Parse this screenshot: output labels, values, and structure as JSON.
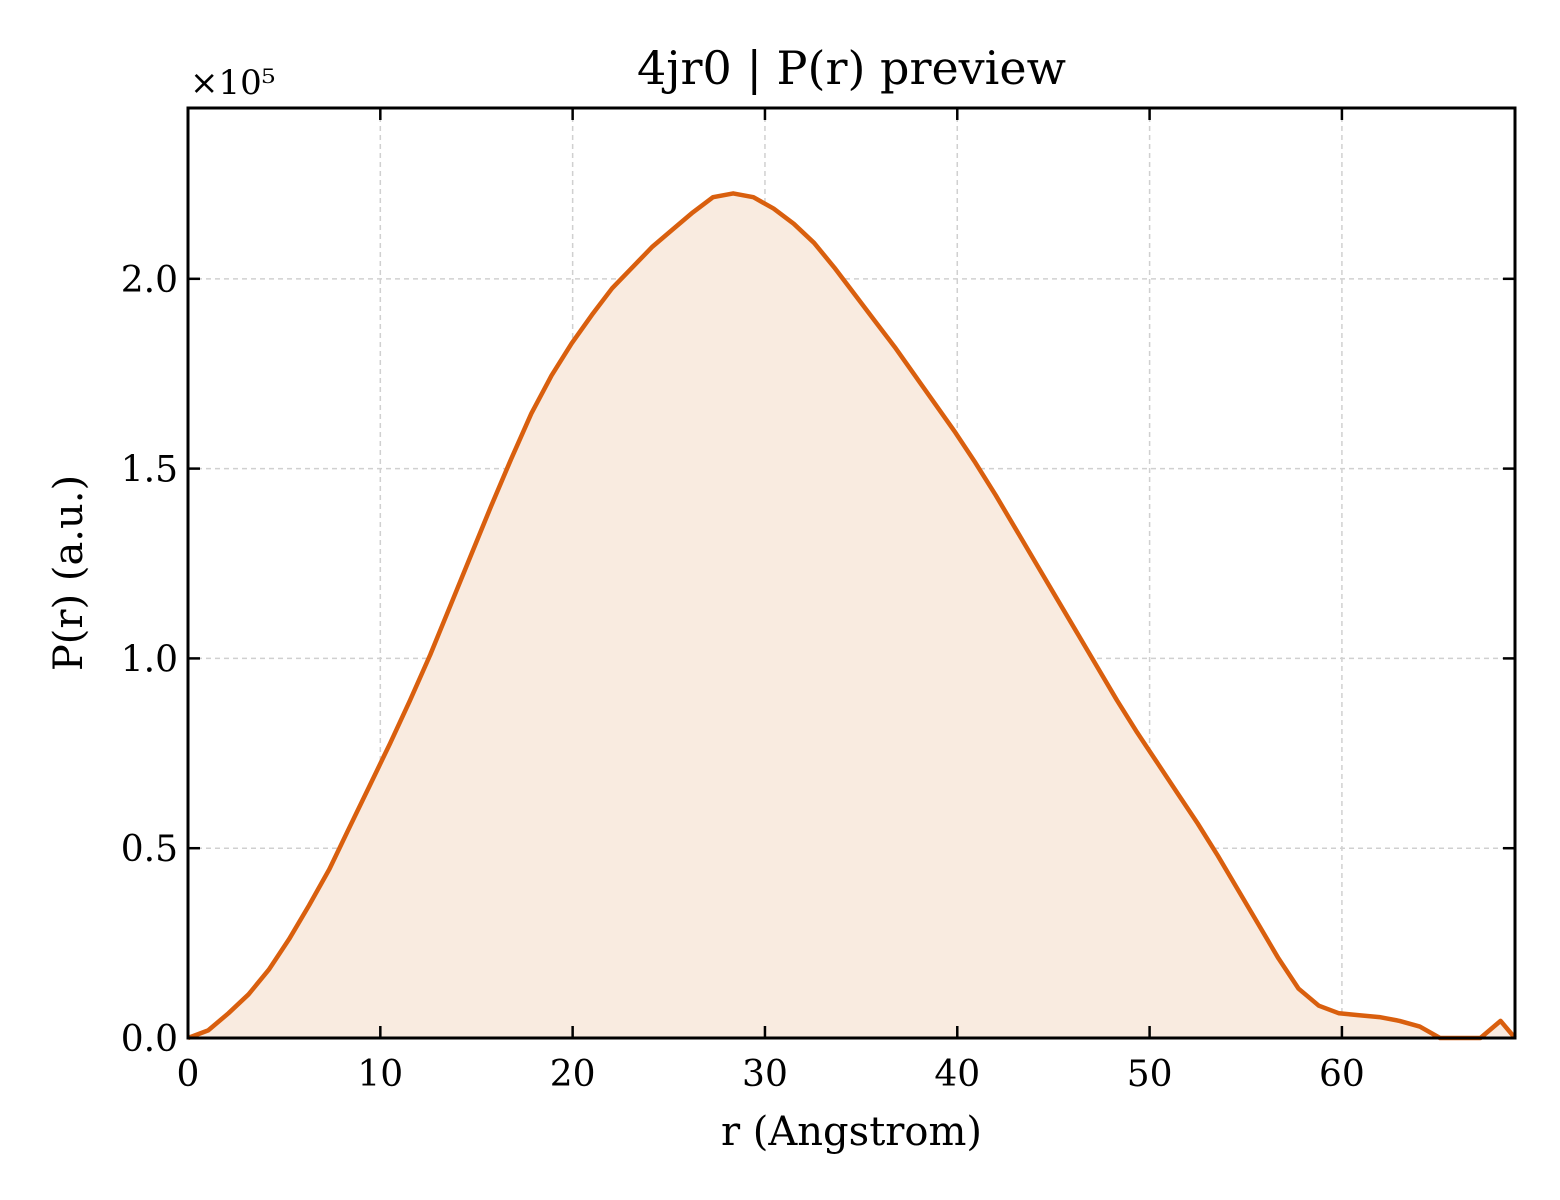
{
  "chart_data": {
    "type": "area",
    "title": "4jr0 | P(r) preview",
    "xlabel": "r (Angstrom)",
    "ylabel": "P(r) (a.u.)",
    "y_offset_label": "×10⁵",
    "xlim": [
      0,
      69
    ],
    "ylim": [
      0,
      2.45
    ],
    "xticks": [
      0,
      10,
      20,
      30,
      40,
      50,
      60
    ],
    "yticks": [
      0.0,
      0.5,
      1.0,
      1.5,
      2.0
    ],
    "xtick_labels": [
      "0",
      "10",
      "20",
      "30",
      "40",
      "50",
      "60"
    ],
    "ytick_labels": [
      "0.0",
      "0.5",
      "1.0",
      "1.5",
      "2.0"
    ],
    "grid": true,
    "color": "#d95f0e",
    "fill_color": "#f9ebe0",
    "series": [
      {
        "x": [
          0,
          1.05,
          2.1,
          3.15,
          4.2,
          5.25,
          6.3,
          7.35,
          8.4,
          9.45,
          10.5,
          11.55,
          12.6,
          13.65,
          14.7,
          15.75,
          16.8,
          17.85,
          18.9,
          19.95,
          21.0,
          22.05,
          23.1,
          24.15,
          25.2,
          26.25,
          27.3,
          28.35,
          29.4,
          30.45,
          31.5,
          32.55,
          33.6,
          34.65,
          35.7,
          36.75,
          37.8,
          38.85,
          39.9,
          40.95,
          42.0,
          43.05,
          44.1,
          45.15,
          46.2,
          47.25,
          48.3,
          49.35,
          50.4,
          51.45,
          52.5,
          53.55,
          54.6,
          55.65,
          56.7,
          57.75,
          58.8,
          59.85,
          60.9,
          61.95,
          63.0,
          64.05,
          65.1,
          66.15,
          67.2,
          68.25,
          69.0
        ],
        "y": [
          0.0,
          0.02,
          0.065,
          0.115,
          0.18,
          0.26,
          0.35,
          0.445,
          0.555,
          0.665,
          0.775,
          0.89,
          1.01,
          1.14,
          1.27,
          1.4,
          1.525,
          1.645,
          1.745,
          1.83,
          1.905,
          1.975,
          2.03,
          2.085,
          2.13,
          2.175,
          2.215,
          2.225,
          2.215,
          2.185,
          2.145,
          2.095,
          2.03,
          1.96,
          1.89,
          1.82,
          1.745,
          1.67,
          1.595,
          1.515,
          1.43,
          1.34,
          1.25,
          1.16,
          1.07,
          0.98,
          0.89,
          0.805,
          0.725,
          0.645,
          0.565,
          0.48,
          0.39,
          0.3,
          0.21,
          0.13,
          0.085,
          0.065,
          0.06,
          0.055,
          0.045,
          0.03,
          0.0,
          0.0,
          0.0,
          0.045,
          0.0
        ]
      }
    ]
  }
}
